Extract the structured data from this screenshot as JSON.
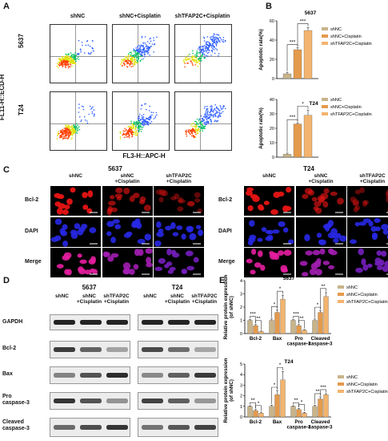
{
  "panelA": {
    "label": "A",
    "columns": [
      "shNC",
      "shNC+Cisplatin",
      "shTFAP2C+Cisplatin"
    ],
    "rows": [
      "5637",
      "T24"
    ],
    "ylabel": "FL11-H::ECD-H",
    "xlabel": "FL3-H::APC-H"
  },
  "panelB": {
    "label": "B"
  },
  "panelC": {
    "label": "C",
    "groups": [
      {
        "title": "5637",
        "columns": [
          "shNC",
          "shNC\n+Cisplatin",
          "shTFAP2C\n+Cisplatin"
        ]
      },
      {
        "title": "T24",
        "columns": [
          "shNC",
          "shNC\n+Cisplatin",
          "shTFAP2C\n+Cisplatin"
        ]
      }
    ],
    "rows": [
      "Bcl-2",
      "DAPI",
      "Merge"
    ]
  },
  "panelD": {
    "label": "D",
    "groups": [
      {
        "title": "5637",
        "lanes": [
          "shNC",
          "shNC\n+Cisplatin",
          "shTFAP2C\n+Cisplatin"
        ]
      },
      {
        "title": "T24",
        "lanes": [
          "shNC",
          "shNC\n+Cisplatin",
          "shTFAP2C\n+Cisplatin"
        ]
      }
    ],
    "proteins": [
      "GAPDH",
      "Bcl-2",
      "Bax",
      "Pro\ncaspase-3",
      "Cleaved\ncaspase-3"
    ]
  },
  "panelE": {
    "label": "E"
  },
  "colors": {
    "shNC": "#c8b48a",
    "shNC_cis": "#e49a4c",
    "shTFAP2C_cis": "#f2b46e",
    "red_ch": "#d01010",
    "blue_ch": "#2020c8"
  },
  "chart_data": [
    {
      "type": "bar",
      "title": "5637",
      "ylabel": "Apoptotic rate(%)",
      "ylim": [
        0,
        60
      ],
      "yticks": [
        "0",
        "20",
        "40",
        "60"
      ],
      "series": [
        {
          "name": "shNC",
          "values": [
            5
          ]
        },
        {
          "name": "shNC+Cisplatin",
          "values": [
            30
          ]
        },
        {
          "name": "shTFAP2C+Cisplatin",
          "values": [
            50
          ]
        }
      ],
      "errors": [
        1.5,
        2,
        3
      ],
      "sig": [
        "***",
        "***"
      ]
    },
    {
      "type": "bar",
      "title": "T24",
      "ylabel": "Apoptotic rate(%)",
      "ylim": [
        0,
        40
      ],
      "yticks": [
        "0",
        "10",
        "20",
        "30",
        "40"
      ],
      "series": [
        {
          "name": "shNC",
          "values": [
            2
          ]
        },
        {
          "name": "shNC+Cisplatin",
          "values": [
            23
          ]
        },
        {
          "name": "shTFAP2C+Cisplatin",
          "values": [
            29
          ]
        }
      ],
      "errors": [
        0.8,
        0.8,
        3.5
      ],
      "sig": [
        "***",
        "*"
      ]
    },
    {
      "type": "bar",
      "title": "5637",
      "ylabel": "Relative protein expression\n(of shNC)",
      "ylim": [
        0,
        4
      ],
      "yticks": [
        "0",
        "1",
        "2",
        "3",
        "4"
      ],
      "categories": [
        "Bcl-2",
        "Bax",
        "Pro\ncaspase-3",
        "Cleaved\ncaspase-3"
      ],
      "series": [
        {
          "name": "shNC",
          "values": [
            1.0,
            1.0,
            1.0,
            1.0
          ]
        },
        {
          "name": "shNC+Cisplatin",
          "values": [
            0.6,
            1.6,
            0.6,
            1.6
          ]
        },
        {
          "name": "shTFAP2C+Cisplatin",
          "values": [
            0.15,
            2.6,
            0.25,
            2.8
          ]
        }
      ],
      "errors": [
        [
          0.05,
          0.1,
          0.05,
          0.1
        ],
        [
          0.08,
          0.2,
          0.08,
          0.15
        ],
        [
          0.04,
          0.3,
          0.05,
          0.3
        ]
      ],
      "sig": [
        [
          "***",
          "**"
        ],
        [
          "*",
          "*"
        ],
        [
          "***",
          "**"
        ],
        [
          "*",
          "**"
        ]
      ]
    },
    {
      "type": "bar",
      "title": "T24",
      "ylabel": "Relative protein expression\n(of shNC)",
      "ylim": [
        0,
        5
      ],
      "yticks": [
        "0",
        "1",
        "2",
        "3",
        "4",
        "5"
      ],
      "categories": [
        "Bcl-2",
        "Bax",
        "Pro\ncaspase-3",
        "Cleaved\ncaspase-3"
      ],
      "series": [
        {
          "name": "shNC",
          "values": [
            1.0,
            1.0,
            1.0,
            1.0
          ]
        },
        {
          "name": "shNC+Cisplatin",
          "values": [
            0.6,
            2.1,
            0.7,
            1.7
          ]
        },
        {
          "name": "shTFAP2C+Cisplatin",
          "values": [
            0.35,
            3.5,
            0.35,
            2.1
          ]
        }
      ],
      "errors": [
        [
          0.05,
          0.1,
          0.05,
          0.1
        ],
        [
          0.1,
          0.4,
          0.1,
          0.2
        ],
        [
          0.1,
          0.8,
          0.08,
          0.1
        ]
      ],
      "sig": [
        [
          "**",
          "*"
        ],
        [
          "*",
          "*"
        ],
        [
          "**",
          "*"
        ],
        [
          "**",
          "***"
        ]
      ]
    }
  ]
}
